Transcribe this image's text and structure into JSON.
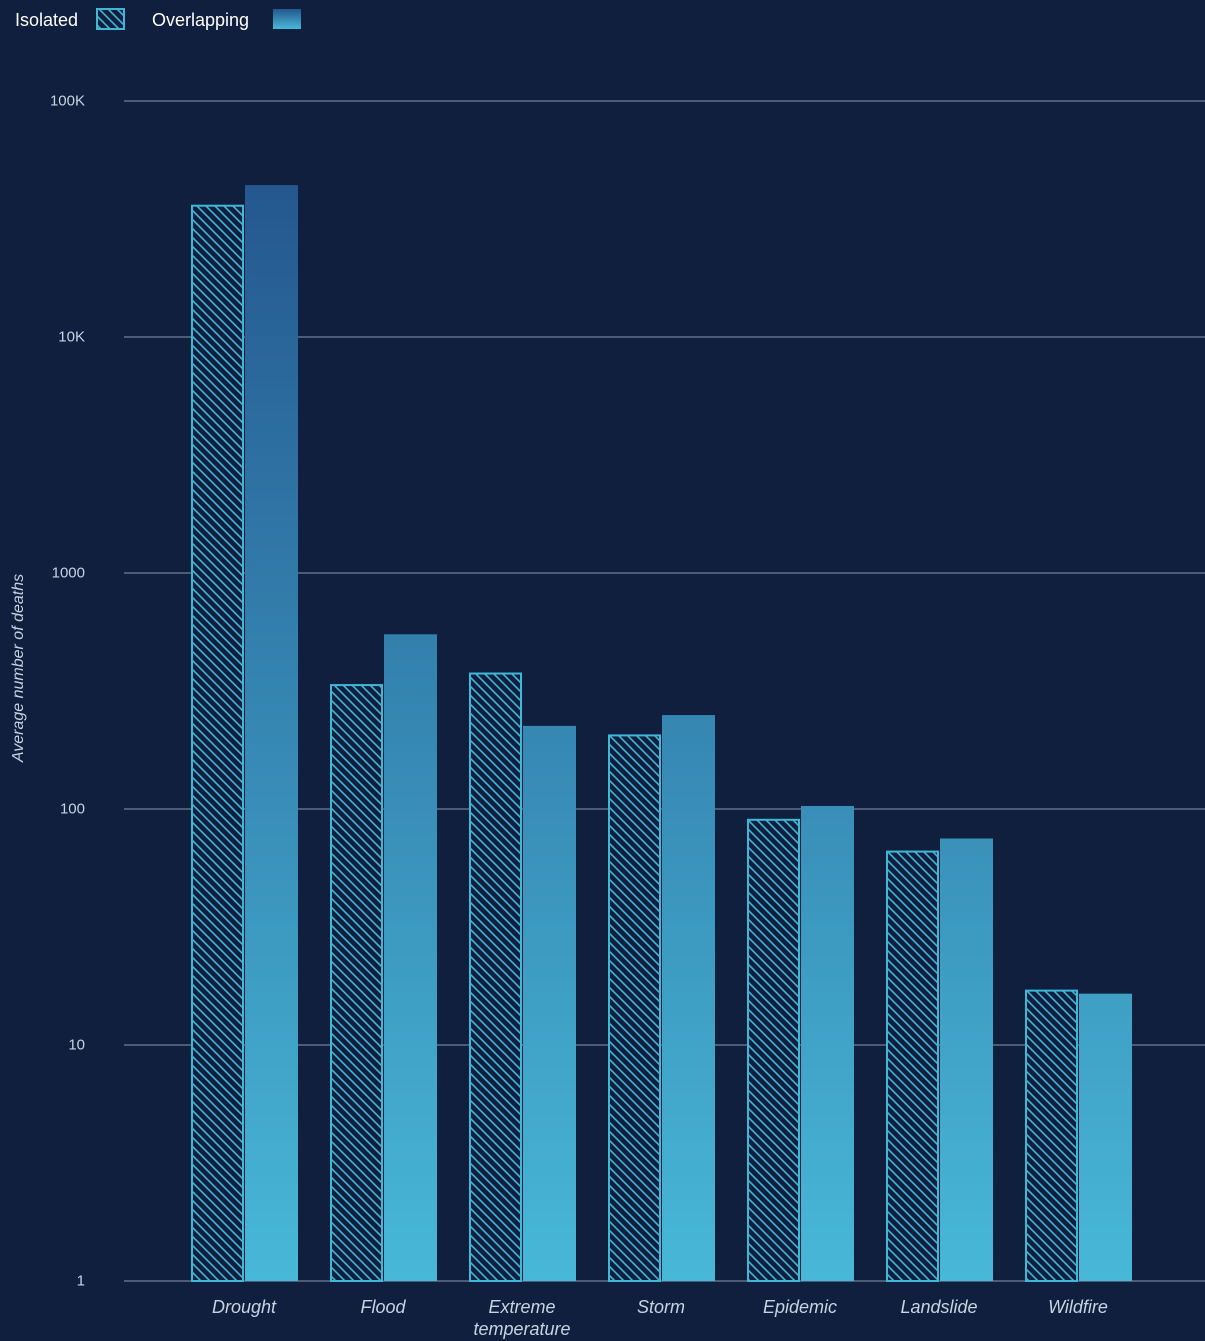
{
  "chart_data": {
    "type": "bar",
    "title": "",
    "xlabel": "",
    "ylabel": "Average number of deaths",
    "yscale": "log",
    "ylim": [
      1,
      100000
    ],
    "yticks": [
      1,
      10,
      100,
      1000,
      10000,
      100000
    ],
    "ytick_labels": [
      "1",
      "10",
      "100",
      "1000",
      "10K",
      "100K"
    ],
    "grid": true,
    "legend_position": "top-left",
    "categories": [
      [
        "Drought"
      ],
      [
        "Flood"
      ],
      [
        "Extreme",
        "temperature"
      ],
      [
        "Storm"
      ],
      [
        "Epidemic"
      ],
      [
        "Landslide"
      ],
      [
        "Wildfire"
      ]
    ],
    "series": [
      {
        "name": "Isolated",
        "pattern": "hatched",
        "color": "#3fb8d8",
        "values": [
          36000,
          335,
          375,
          205,
          90,
          66,
          17
        ]
      },
      {
        "name": "Overlapping",
        "pattern": "gradient",
        "color": "#2a6aa3",
        "values": [
          44000,
          550,
          225,
          250,
          103,
          75,
          16.5
        ]
      }
    ]
  },
  "colors": {
    "background": "#0f1f3d",
    "hatch_stroke": "#3fb8d8",
    "gradient_top": "#24578e",
    "gradient_bottom": "#48b8d8",
    "grid": "#8c97aa"
  }
}
